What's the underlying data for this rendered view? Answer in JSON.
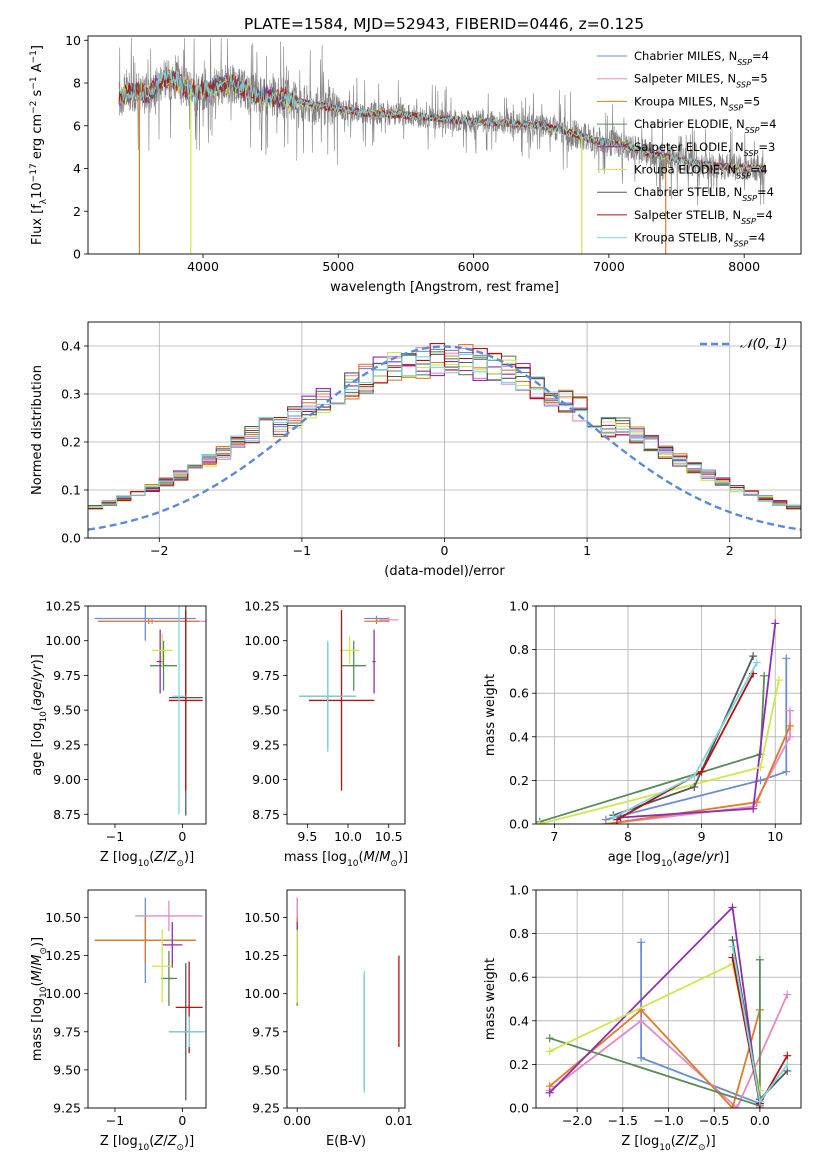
{
  "figure": {
    "title": "PLATE=1584, MJD=52943, FIBERID=0446, z=0.125"
  },
  "models": [
    {
      "name": "Chabrier MILES",
      "nssp": "4",
      "color": "#6a8dd6"
    },
    {
      "name": "Salpeter MILES",
      "nssp": "5",
      "color": "#e78ac3"
    },
    {
      "name": "Kroupa MILES",
      "nssp": "5",
      "color": "#e07b2a"
    },
    {
      "name": "Chabrier ELODIE",
      "nssp": "4",
      "color": "#5a8a5a"
    },
    {
      "name": "Salpeter ELODIE",
      "nssp": "3",
      "color": "#8e2fb0"
    },
    {
      "name": "Kroupa ELODIE",
      "nssp": "4",
      "color": "#cde84f"
    },
    {
      "name": "Chabrier STELIB",
      "nssp": "4",
      "color": "#505a5a"
    },
    {
      "name": "Salpeter STELIB",
      "nssp": "4",
      "color": "#b21212"
    },
    {
      "name": "Kroupa STELIB",
      "nssp": "4",
      "color": "#7fd6e0"
    }
  ],
  "chart_data": [
    {
      "id": "spectrum",
      "type": "line",
      "xlabel": "wavelength [Angstrom, rest frame]",
      "ylabel_html": "Flux [f<tspan baseline-shift='sub' font-size='9'>λ</tspan>10<tspan baseline-shift='super' font-size='9'>−17</tspan> erg cm<tspan baseline-shift='super' font-size='9'>−2</tspan> s<tspan baseline-shift='super' font-size='9'>−1</tspan> A<tspan baseline-shift='super' font-size='9'>−1</tspan>]",
      "xlim": [
        3150,
        8420
      ],
      "ylim": [
        0,
        10.2
      ],
      "xticks": [
        4000,
        5000,
        6000,
        7000,
        8000
      ],
      "yticks": [
        0,
        2,
        4,
        6,
        8,
        10
      ],
      "data_color": "#808080",
      "continuum": [
        [
          3380,
          7.3
        ],
        [
          3450,
          7.6
        ],
        [
          3600,
          7.5
        ],
        [
          3700,
          8.2
        ],
        [
          3800,
          8.1
        ],
        [
          3900,
          7.7
        ],
        [
          4000,
          7.6
        ],
        [
          4200,
          8.0
        ],
        [
          4400,
          7.4
        ],
        [
          4600,
          7.3
        ],
        [
          4800,
          7.0
        ],
        [
          5000,
          6.8
        ],
        [
          5200,
          6.6
        ],
        [
          5500,
          6.5
        ],
        [
          5800,
          6.3
        ],
        [
          6000,
          6.2
        ],
        [
          6300,
          6.1
        ],
        [
          6500,
          6.0
        ],
        [
          6700,
          5.7
        ],
        [
          6900,
          5.3
        ],
        [
          7100,
          5.1
        ],
        [
          7300,
          4.7
        ],
        [
          7600,
          4.3
        ],
        [
          7800,
          4.1
        ],
        [
          8100,
          4.0
        ]
      ],
      "model_dropouts": [
        [
          3530,
          3530,
          7
        ],
        [
          3910,
          3910,
          5
        ],
        [
          6800,
          6800,
          5
        ],
        [
          7420,
          7420,
          7
        ]
      ]
    },
    {
      "id": "residuals",
      "type": "histogram",
      "xlabel": "(data-model)/error",
      "ylabel": "Normed distribution",
      "xlim": [
        -2.5,
        2.5
      ],
      "ylim": [
        0,
        0.45
      ],
      "xticks": [
        -2,
        -1,
        0,
        1,
        2
      ],
      "yticks": [
        0.0,
        0.1,
        0.2,
        0.3,
        0.4
      ],
      "bin_width": 0.1,
      "gaussian_label": "𝒩(0, 1)",
      "gaussian_color": "#5b8bd6",
      "grid": true,
      "legend": "top-right"
    },
    {
      "id": "age_vs_Z",
      "type": "errorbar",
      "xlabel_html": "Z [log<tspan baseline-shift='sub' font-size='9'>10</tspan>(<tspan font-style='italic'>Z</tspan>/<tspan font-style='italic'>Z</tspan><tspan baseline-shift='sub' font-size='9'>⊙</tspan>)]",
      "ylabel_html": "age  [log<tspan baseline-shift='sub' font-size='9'>10</tspan>(<tspan font-style='italic'>age</tspan>/<tspan font-style='italic'>yr</tspan>)]",
      "xlim": [
        -1.4,
        0.35
      ],
      "ylim": [
        8.68,
        10.25
      ],
      "xticks": [
        -1,
        0
      ],
      "ytick_labels": [
        "8.75",
        "9.00",
        "9.25",
        "9.50",
        "9.75",
        "10.00",
        "10.25"
      ],
      "yticks": [
        8.75,
        9.0,
        9.25,
        9.5,
        9.75,
        10.0,
        10.25
      ],
      "points": [
        {
          "m": 0,
          "x": -0.55,
          "xe": 0.75,
          "y": 10.16,
          "ye": 0.16
        },
        {
          "m": 1,
          "x": -0.45,
          "xe": 0.8,
          "y": 10.14,
          "ye": 0.02
        },
        {
          "m": 2,
          "x": -0.5,
          "xe": 0.75,
          "y": 10.14,
          "ye": 0.02
        },
        {
          "m": 3,
          "x": -0.28,
          "xe": 0.2,
          "y": 9.82,
          "ye": 0.18
        },
        {
          "m": 4,
          "x": -0.33,
          "xe": 0.05,
          "y": 9.85,
          "ye": 0.23
        },
        {
          "m": 5,
          "x": -0.3,
          "xe": 0.15,
          "y": 9.93,
          "ye": 0.12
        },
        {
          "m": 6,
          "x": 0.05,
          "xe": 0.25,
          "y": 9.59,
          "ye": 0.85
        },
        {
          "m": 7,
          "x": 0.05,
          "xe": 0.25,
          "y": 9.57,
          "ye": 0.65
        },
        {
          "m": 8,
          "x": -0.05,
          "xe": 0.1,
          "y": 9.6,
          "ye": 0.85
        }
      ]
    },
    {
      "id": "age_vs_mass",
      "type": "errorbar",
      "xlabel_html": "mass [log<tspan baseline-shift='sub' font-size='9'>10</tspan>(<tspan font-style='italic'>M</tspan>/<tspan font-style='italic'>M</tspan><tspan baseline-shift='sub' font-size='9'>⊙</tspan>)]",
      "xlim": [
        9.25,
        10.7
      ],
      "ylim": [
        8.68,
        10.25
      ],
      "xticks": [
        9.5,
        10.0,
        10.5
      ],
      "xtick_labels": [
        "9.5",
        "10.0",
        "10.5"
      ],
      "yticks": [
        8.75,
        9.0,
        9.25,
        9.5,
        9.75,
        10.0,
        10.25
      ],
      "ytick_labels": [
        "8.75",
        "9.00",
        "9.25",
        "9.50",
        "9.75",
        "10.00",
        "10.25"
      ],
      "points": [
        {
          "m": 0,
          "x": 10.35,
          "xe": 0.15,
          "y": 10.16,
          "ye": 0.02
        },
        {
          "m": 1,
          "x": 10.5,
          "xe": 0.12,
          "y": 10.15,
          "ye": 0.02
        },
        {
          "m": 2,
          "x": 10.35,
          "xe": 0.15,
          "y": 10.14,
          "ye": 0.02
        },
        {
          "m": 3,
          "x": 10.07,
          "xe": 0.15,
          "y": 9.82,
          "ye": 0.18
        },
        {
          "m": 4,
          "x": 10.32,
          "xe": 0.02,
          "y": 9.85,
          "ye": 0.23
        },
        {
          "m": 5,
          "x": 10.02,
          "xe": 0.12,
          "y": 9.93,
          "ye": 0.1
        },
        {
          "m": 6,
          "x": 9.75,
          "xe": 0.35,
          "y": 9.6,
          "ye": 0.38
        },
        {
          "m": 7,
          "x": 9.92,
          "xe": 0.4,
          "y": 9.57,
          "ye": 0.65
        },
        {
          "m": 8,
          "x": 9.75,
          "xe": 0.35,
          "y": 9.6,
          "ye": 0.4
        }
      ]
    },
    {
      "id": "weight_vs_age",
      "type": "line",
      "xlabel_html": "age  [log<tspan baseline-shift='sub' font-size='9'>10</tspan>(<tspan font-style='italic'>age</tspan>/<tspan font-style='italic'>yr</tspan>)]",
      "ylabel": "mass weight",
      "xlim": [
        6.75,
        10.35
      ],
      "ylim": [
        0,
        1
      ],
      "xticks": [
        7,
        8,
        9,
        10
      ],
      "yticks": [
        0.0,
        0.2,
        0.4,
        0.6,
        0.8,
        1.0
      ],
      "grid": true,
      "series": [
        {
          "m": 0,
          "x": [
            7.7,
            9.8,
            10.15,
            10.15
          ],
          "y": [
            0.02,
            0.2,
            0.24,
            0.76
          ]
        },
        {
          "m": 1,
          "x": [
            7.7,
            9.7,
            10.2,
            10.2
          ],
          "y": [
            0.0,
            0.08,
            0.4,
            0.52
          ]
        },
        {
          "m": 2,
          "x": [
            7.7,
            9.75,
            10.2
          ],
          "y": [
            0.0,
            0.1,
            0.45
          ]
        },
        {
          "m": 3,
          "x": [
            6.8,
            9.8,
            9.85
          ],
          "y": [
            0.01,
            0.32,
            0.68
          ]
        },
        {
          "m": 4,
          "x": [
            7.9,
            9.7,
            10.0
          ],
          "y": [
            0.03,
            0.07,
            0.92
          ]
        },
        {
          "m": 5,
          "x": [
            6.8,
            9.8,
            10.05
          ],
          "y": [
            0.0,
            0.26,
            0.66
          ]
        },
        {
          "m": 6,
          "x": [
            7.8,
            8.9,
            9.7
          ],
          "y": [
            0.04,
            0.17,
            0.77
          ]
        },
        {
          "m": 7,
          "x": [
            7.85,
            9.0,
            9.7
          ],
          "y": [
            0.02,
            0.24,
            0.69
          ]
        },
        {
          "m": 8,
          "x": [
            7.8,
            8.9,
            9.75
          ],
          "y": [
            0.03,
            0.22,
            0.74
          ]
        }
      ]
    },
    {
      "id": "mass_vs_Z",
      "type": "errorbar",
      "xlabel_html": "Z [log<tspan baseline-shift='sub' font-size='9'>10</tspan>(<tspan font-style='italic'>Z</tspan>/<tspan font-style='italic'>Z</tspan><tspan baseline-shift='sub' font-size='9'>⊙</tspan>)]",
      "ylabel_html": "mass [log<tspan baseline-shift='sub' font-size='9'>10</tspan>(<tspan font-style='italic'>M</tspan>/<tspan font-style='italic'>M</tspan><tspan baseline-shift='sub' font-size='9'>⊙</tspan>)]",
      "xlim": [
        -1.4,
        0.35
      ],
      "ylim": [
        9.25,
        10.68
      ],
      "xticks": [
        -1,
        0
      ],
      "yticks": [
        9.25,
        9.5,
        9.75,
        10.0,
        10.25,
        10.5
      ],
      "ytick_labels": [
        "9.25",
        "9.50",
        "9.75",
        "10.00",
        "10.25",
        "10.50"
      ],
      "points": [
        {
          "m": 0,
          "x": -0.55,
          "xe": 0.75,
          "y": 10.35,
          "ye": 0.28
        },
        {
          "m": 1,
          "x": -0.2,
          "xe": 0.5,
          "y": 10.51,
          "ye": 0.1
        },
        {
          "m": 2,
          "x": -0.55,
          "xe": 0.75,
          "y": 10.35,
          "ye": 0.15
        },
        {
          "m": 3,
          "x": -0.2,
          "xe": 0.12,
          "y": 10.1,
          "ye": 0.18
        },
        {
          "m": 4,
          "x": -0.15,
          "xe": 0.15,
          "y": 10.32,
          "ye": 0.15
        },
        {
          "m": 5,
          "x": -0.3,
          "xe": 0.15,
          "y": 10.18,
          "ye": 0.24
        },
        {
          "m": 6,
          "x": 0.05,
          "xe": 0.25,
          "y": 9.75,
          "ye": 0.45
        },
        {
          "m": 7,
          "x": 0.1,
          "xe": 0.2,
          "y": 9.91,
          "ye": 0.3
        },
        {
          "m": 8,
          "x": 0.1,
          "xe": 0.3,
          "y": 9.75,
          "ye": 0.1
        }
      ]
    },
    {
      "id": "mass_vs_ebv",
      "type": "errorbar",
      "xlabel": "E(B-V)",
      "xlim": [
        -0.001,
        0.0106
      ],
      "ylim": [
        9.25,
        10.68
      ],
      "xticks": [
        0.0,
        0.01
      ],
      "xtick_labels": [
        "0.00",
        "0.01"
      ],
      "yticks": [
        9.25,
        9.5,
        9.75,
        10.0,
        10.25,
        10.5
      ],
      "ytick_labels": [
        "9.25",
        "9.50",
        "9.75",
        "10.00",
        "10.25",
        "10.50"
      ],
      "points": [
        {
          "m": 0,
          "x": 0.0,
          "xe": 0,
          "y": 10.35,
          "ye": 0.28
        },
        {
          "m": 1,
          "x": 0.0,
          "xe": 0,
          "y": 10.51,
          "ye": 0.12
        },
        {
          "m": 2,
          "x": 0.0,
          "xe": 0,
          "y": 10.35,
          "ye": 0.15
        },
        {
          "m": 3,
          "x": 0.0,
          "xe": 0,
          "y": 10.1,
          "ye": 0.18
        },
        {
          "m": 4,
          "x": 0.0,
          "xe": 0,
          "y": 10.32,
          "ye": 0.15
        },
        {
          "m": 5,
          "x": 0.0,
          "xe": 0,
          "y": 10.18,
          "ye": 0.24
        },
        {
          "m": 6,
          "x": 0.0066,
          "xe": 0,
          "y": 9.75,
          "ye": 0.38
        },
        {
          "m": 7,
          "x": 0.01,
          "xe": 0,
          "y": 9.95,
          "ye": 0.3
        },
        {
          "m": 8,
          "x": 0.0066,
          "xe": 0,
          "y": 9.75,
          "ye": 0.4
        }
      ]
    },
    {
      "id": "weight_vs_Z",
      "type": "line",
      "xlabel_html": "Z [log<tspan baseline-shift='sub' font-size='9'>10</tspan>(<tspan font-style='italic'>Z</tspan>/<tspan font-style='italic'>Z</tspan><tspan baseline-shift='sub' font-size='9'>⊙</tspan>)]",
      "ylabel": "mass weight",
      "xlim": [
        -2.45,
        0.45
      ],
      "ylim": [
        0,
        1
      ],
      "xticks": [
        -2.0,
        -1.5,
        -1.0,
        -0.5,
        0.0
      ],
      "xtick_labels": [
        "−2.0",
        "−1.5",
        "−1.0",
        "−0.5",
        "0.0"
      ],
      "yticks": [
        0.0,
        0.2,
        0.4,
        0.6,
        0.8,
        1.0
      ],
      "grid": true,
      "series": [
        {
          "m": 0,
          "x": [
            -1.3,
            -1.3,
            0.0,
            0.0
          ],
          "y": [
            0.76,
            0.23,
            0.02,
            0.0
          ]
        },
        {
          "m": 1,
          "x": [
            -2.3,
            -1.3,
            -0.25,
            0.3
          ],
          "y": [
            0.08,
            0.4,
            0.0,
            0.52
          ]
        },
        {
          "m": 2,
          "x": [
            -2.3,
            -1.3,
            -0.3,
            0.0
          ],
          "y": [
            0.1,
            0.45,
            0.0,
            0.45
          ]
        },
        {
          "m": 3,
          "x": [
            -2.3,
            0.0,
            0.0
          ],
          "y": [
            0.32,
            0.01,
            0.68
          ]
        },
        {
          "m": 4,
          "x": [
            -2.3,
            -0.3,
            0.0
          ],
          "y": [
            0.07,
            0.92,
            0.0
          ]
        },
        {
          "m": 5,
          "x": [
            -2.3,
            -0.3,
            0.0
          ],
          "y": [
            0.26,
            0.66,
            0.08
          ]
        },
        {
          "m": 6,
          "x": [
            -0.3,
            0.0,
            0.3
          ],
          "y": [
            0.77,
            0.04,
            0.17
          ]
        },
        {
          "m": 7,
          "x": [
            -0.3,
            0.0,
            0.3
          ],
          "y": [
            0.69,
            0.02,
            0.24
          ]
        },
        {
          "m": 8,
          "x": [
            -0.3,
            0.0,
            0.3
          ],
          "y": [
            0.74,
            0.03,
            0.2
          ]
        }
      ]
    }
  ]
}
